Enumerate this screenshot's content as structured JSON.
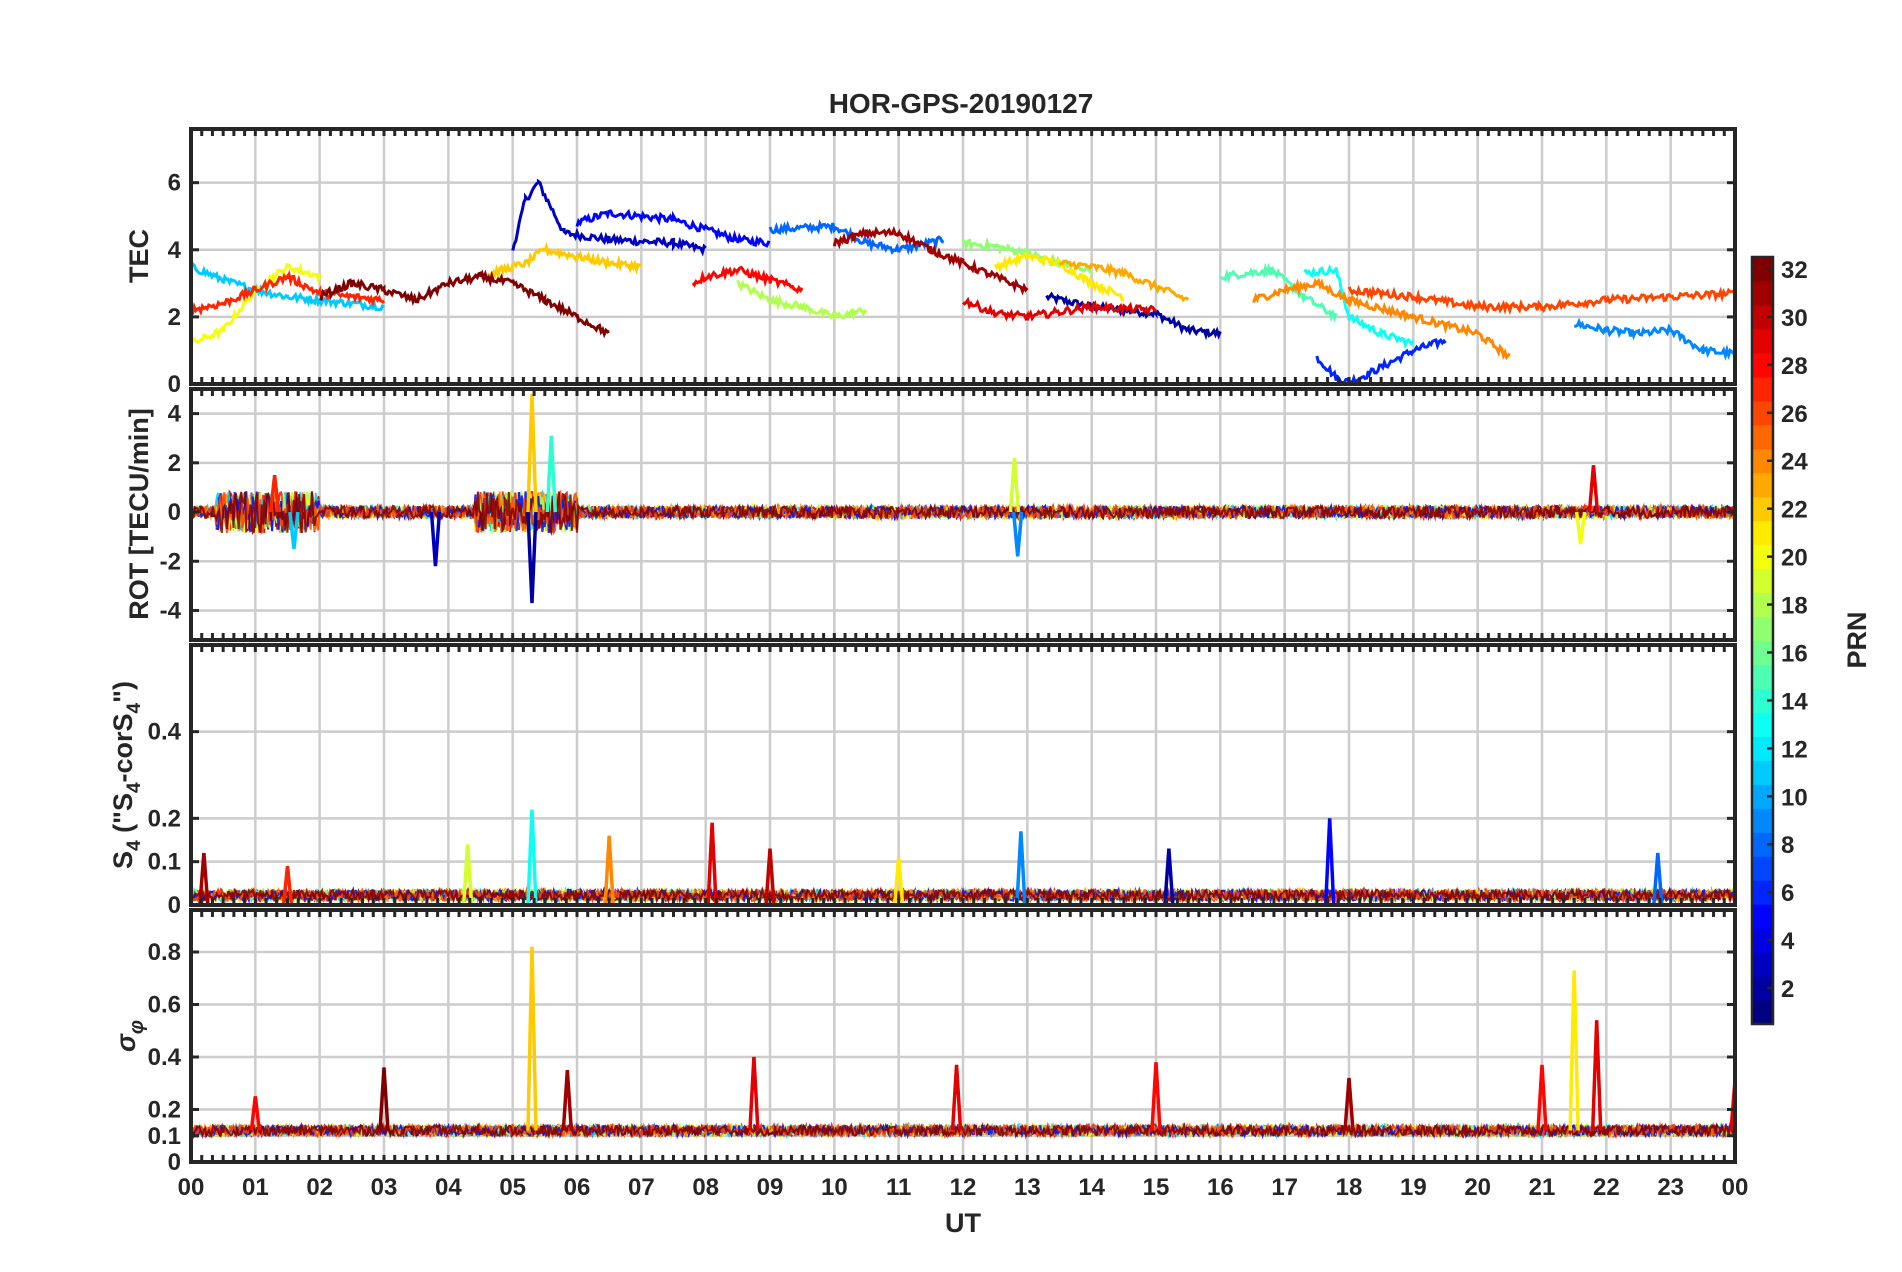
{
  "figure": {
    "title": "HOR-GPS-20190127",
    "colors": {
      "axes": "#262626",
      "grid": "#cccccc",
      "background": "#ffffff"
    }
  },
  "chart_data": [
    {
      "type": "line",
      "panel": "tec",
      "title": "HOR-GPS-20190127",
      "ylabel": "TEC",
      "xlabel": "",
      "xlim": [
        0,
        24
      ],
      "ylim": [
        0,
        7.6
      ],
      "yticks": [
        0,
        2,
        4,
        6
      ],
      "grid": true,
      "series": [
        {
          "prn": 2,
          "x": [
            13.3,
            14,
            15,
            15.5,
            16
          ],
          "y": [
            2.6,
            2.3,
            2.1,
            1.6,
            1.5
          ]
        },
        {
          "prn": 3,
          "x": [
            5.0,
            5.2,
            5.4,
            5.8,
            6.5,
            7.5,
            8.0
          ],
          "y": [
            4.0,
            5.5,
            6.0,
            4.5,
            4.3,
            4.2,
            4.0
          ]
        },
        {
          "prn": 5,
          "x": [
            6.0,
            6.5,
            7.5,
            8.5,
            9.0
          ],
          "y": [
            4.8,
            5.1,
            4.9,
            4.3,
            4.2
          ]
        },
        {
          "prn": 6,
          "x": [
            17.5,
            17.8,
            18.0,
            18.3,
            19.0,
            19.5
          ],
          "y": [
            0.8,
            0.2,
            0.05,
            0.3,
            1.0,
            1.3
          ]
        },
        {
          "prn": 8,
          "x": [
            9.0,
            10.0,
            10.5,
            11.0,
            11.7
          ],
          "y": [
            4.6,
            4.7,
            4.2,
            4.0,
            4.3
          ]
        },
        {
          "prn": 9,
          "x": [
            21.5,
            22.0,
            22.5,
            23.0,
            23.5,
            24.0
          ],
          "y": [
            1.8,
            1.6,
            1.5,
            1.6,
            1.0,
            0.9
          ]
        },
        {
          "prn": 11,
          "x": [
            0.0,
            0.5,
            1.0,
            1.5,
            2.0,
            3.0
          ],
          "y": [
            3.5,
            3.1,
            2.8,
            2.6,
            2.5,
            2.3
          ]
        },
        {
          "prn": 13,
          "x": [
            17.3,
            17.8,
            18.0,
            18.5,
            19.0
          ],
          "y": [
            3.3,
            3.4,
            2.0,
            1.5,
            1.2
          ]
        },
        {
          "prn": 15,
          "x": [
            16.0,
            16.8,
            17.3,
            17.8
          ],
          "y": [
            3.2,
            3.4,
            2.6,
            2.0
          ]
        },
        {
          "prn": 17,
          "x": [
            12.0,
            12.5,
            13.0,
            13.5,
            14.0
          ],
          "y": [
            4.2,
            4.1,
            3.9,
            3.6,
            3.4
          ]
        },
        {
          "prn": 18,
          "x": [
            8.5,
            9.0,
            9.5,
            10.0,
            10.5
          ],
          "y": [
            3.0,
            2.5,
            2.3,
            2.0,
            2.2
          ]
        },
        {
          "prn": 20,
          "x": [
            0.0,
            0.5,
            1.0,
            1.5,
            2.0
          ],
          "y": [
            1.2,
            1.6,
            2.8,
            3.5,
            3.2
          ]
        },
        {
          "prn": 21,
          "x": [
            12.5,
            13.0,
            13.5,
            14.0,
            14.5
          ],
          "y": [
            3.5,
            3.8,
            3.6,
            3.0,
            2.6
          ]
        },
        {
          "prn": 22,
          "x": [
            4.5,
            5.2,
            5.5,
            6.0,
            6.5,
            7.0
          ],
          "y": [
            3.2,
            3.6,
            4.0,
            3.8,
            3.6,
            3.5
          ]
        },
        {
          "prn": 23,
          "x": [
            13.5,
            14.0,
            14.5,
            15.0,
            15.5
          ],
          "y": [
            3.6,
            3.5,
            3.3,
            2.9,
            2.5
          ]
        },
        {
          "prn": 24,
          "x": [
            16.5,
            17.0,
            17.5,
            18.0,
            19.0,
            20.0,
            20.5
          ],
          "y": [
            2.5,
            2.8,
            3.0,
            2.5,
            2.0,
            1.5,
            0.8
          ]
        },
        {
          "prn": 26,
          "x": [
            18.0,
            19.0,
            20.0,
            21.0,
            22.0,
            23.0,
            24.0
          ],
          "y": [
            2.8,
            2.6,
            2.3,
            2.3,
            2.5,
            2.6,
            2.7
          ]
        },
        {
          "prn": 27,
          "x": [
            0.0,
            0.5,
            1.0,
            1.5,
            2.0,
            3.0
          ],
          "y": [
            2.2,
            2.4,
            2.8,
            3.2,
            2.7,
            2.5
          ]
        },
        {
          "prn": 28,
          "x": [
            7.8,
            8.0,
            8.5,
            9.0,
            9.5
          ],
          "y": [
            3.0,
            3.2,
            3.4,
            3.1,
            2.8
          ]
        },
        {
          "prn": 29,
          "x": [
            12.0,
            12.5,
            13.0,
            14.0,
            15.0
          ],
          "y": [
            2.5,
            2.1,
            2.0,
            2.3,
            2.2
          ]
        },
        {
          "prn": 31,
          "x": [
            10.0,
            10.5,
            11.0,
            11.5,
            12.0,
            12.5,
            13.0
          ],
          "y": [
            4.2,
            4.5,
            4.5,
            4.0,
            3.6,
            3.2,
            2.8
          ]
        },
        {
          "prn": 32,
          "x": [
            2.0,
            2.5,
            3.0,
            3.5,
            4.0,
            4.5,
            5.0,
            5.5,
            6.0,
            6.5
          ],
          "y": [
            2.6,
            3.0,
            2.8,
            2.5,
            3.0,
            3.2,
            3.0,
            2.5,
            2.0,
            1.5
          ]
        }
      ]
    },
    {
      "type": "line",
      "panel": "rot",
      "ylabel": "ROT [TECU/min]",
      "xlabel": "",
      "xlim": [
        0,
        24
      ],
      "ylim": [
        -5.2,
        5
      ],
      "yticks": [
        -4,
        -2,
        0,
        2,
        4
      ],
      "grid": true,
      "baseline": 0,
      "spikes": [
        {
          "prn": 27,
          "x": 1.3,
          "y": 1.5
        },
        {
          "prn": 11,
          "x": 1.6,
          "y": -1.5
        },
        {
          "prn": 3,
          "x": 3.8,
          "y": -2.2
        },
        {
          "prn": 2,
          "x": 5.3,
          "y": -3.7
        },
        {
          "prn": 22,
          "x": 5.3,
          "y": 4.8
        },
        {
          "prn": 14,
          "x": 5.6,
          "y": 3.1
        },
        {
          "prn": 19,
          "x": 12.8,
          "y": 2.2
        },
        {
          "prn": 9,
          "x": 12.85,
          "y": -1.8
        },
        {
          "prn": 29,
          "x": 21.8,
          "y": 1.9
        },
        {
          "prn": 20,
          "x": 21.6,
          "y": -1.3
        }
      ]
    },
    {
      "type": "line",
      "panel": "s4",
      "ylabel": "S4 (\"S4-corS4\")",
      "xlabel": "",
      "xlim": [
        0,
        24
      ],
      "ylim": [
        0,
        0.6
      ],
      "yticks": [
        0,
        0.1,
        0.2,
        0.4
      ],
      "grid": true,
      "spikes": [
        {
          "prn": 31,
          "x": 0.2,
          "y": 0.12
        },
        {
          "prn": 27,
          "x": 1.5,
          "y": 0.09
        },
        {
          "prn": 19,
          "x": 4.3,
          "y": 0.14
        },
        {
          "prn": 13,
          "x": 5.3,
          "y": 0.22
        },
        {
          "prn": 24,
          "x": 6.5,
          "y": 0.16
        },
        {
          "prn": 29,
          "x": 8.1,
          "y": 0.19
        },
        {
          "prn": 30,
          "x": 9.0,
          "y": 0.13
        },
        {
          "prn": 21,
          "x": 11.0,
          "y": 0.11
        },
        {
          "prn": 9,
          "x": 12.9,
          "y": 0.17
        },
        {
          "prn": 2,
          "x": 15.2,
          "y": 0.13
        },
        {
          "prn": 5,
          "x": 17.7,
          "y": 0.2
        },
        {
          "prn": 8,
          "x": 22.8,
          "y": 0.12
        }
      ]
    },
    {
      "type": "line",
      "panel": "sigma",
      "ylabel": "σφ",
      "xlabel": "UT",
      "xlim": [
        0,
        24
      ],
      "ylim": [
        0,
        0.96
      ],
      "yticks": [
        0,
        0.1,
        0.2,
        0.4,
        0.6,
        0.8
      ],
      "grid": true,
      "baseline": 0.12,
      "spikes": [
        {
          "prn": 28,
          "x": 1.0,
          "y": 0.25
        },
        {
          "prn": 32,
          "x": 3.0,
          "y": 0.36
        },
        {
          "prn": 22,
          "x": 5.3,
          "y": 0.82
        },
        {
          "prn": 31,
          "x": 5.85,
          "y": 0.35
        },
        {
          "prn": 29,
          "x": 8.75,
          "y": 0.4
        },
        {
          "prn": 29,
          "x": 11.9,
          "y": 0.37
        },
        {
          "prn": 28,
          "x": 15.0,
          "y": 0.38
        },
        {
          "prn": 31,
          "x": 18.0,
          "y": 0.32
        },
        {
          "prn": 28,
          "x": 21.0,
          "y": 0.37
        },
        {
          "prn": 21,
          "x": 21.5,
          "y": 0.73
        },
        {
          "prn": 29,
          "x": 21.85,
          "y": 0.54
        },
        {
          "prn": 29,
          "x": 24.0,
          "y": 0.31
        }
      ]
    }
  ],
  "xaxis": {
    "label": "UT",
    "ticks": [
      "00",
      "01",
      "02",
      "03",
      "04",
      "05",
      "06",
      "07",
      "08",
      "09",
      "10",
      "11",
      "12",
      "13",
      "14",
      "15",
      "16",
      "17",
      "18",
      "19",
      "20",
      "21",
      "22",
      "23",
      "00"
    ]
  },
  "colorbar": {
    "label": "PRN",
    "range": [
      1,
      32
    ],
    "ticks": [
      2,
      4,
      6,
      8,
      10,
      12,
      14,
      16,
      18,
      20,
      22,
      24,
      26,
      28,
      30,
      32
    ],
    "colormap": "jet"
  }
}
